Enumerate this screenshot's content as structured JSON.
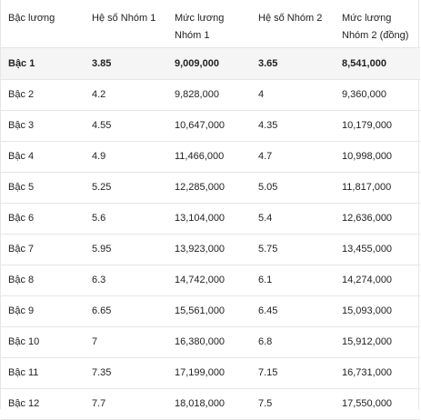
{
  "table": {
    "headers": [
      "Bậc lương",
      "Hệ số Nhóm 1",
      "Mức lương Nhóm 1",
      "Hệ số Nhóm 2",
      "Mức lương Nhóm 2 (đồng)"
    ],
    "rows": [
      [
        "Bậc 1",
        "3.85",
        "9,009,000",
        "3.65",
        "8,541,000"
      ],
      [
        "Bậc 2",
        "4.2",
        "9,828,000",
        "4",
        "9,360,000"
      ],
      [
        "Bậc 3",
        "4.55",
        "10,647,000",
        "4.35",
        "10,179,000"
      ],
      [
        "Bậc 4",
        "4.9",
        "11,466,000",
        "4.7",
        "10,998,000"
      ],
      [
        "Bậc 5",
        "5.25",
        "12,285,000",
        "5.05",
        "11,817,000"
      ],
      [
        "Bậc 6",
        "5.6",
        "13,104,000",
        "5.4",
        "12,636,000"
      ],
      [
        "Bậc 7",
        "5.95",
        "13,923,000",
        "5.75",
        "13,455,000"
      ],
      [
        "Bậc 8",
        "6.3",
        "14,742,000",
        "6.1",
        "14,274,000"
      ],
      [
        "Bậc 9",
        "6.65",
        "15,561,000",
        "6.45",
        "15,093,000"
      ],
      [
        "Bậc 10",
        "7",
        "16,380,000",
        "6.8",
        "15,912,000"
      ],
      [
        "Bậc 11",
        "7.35",
        "17,199,000",
        "7.15",
        "16,731,000"
      ],
      [
        "Bậc 12",
        "7.7",
        "18,018,000",
        "7.5",
        "17,550,000"
      ]
    ]
  },
  "colors": {
    "border": "#e6e6e6",
    "highlight_row_bg": "#f5f5f5",
    "text": "#222222"
  }
}
